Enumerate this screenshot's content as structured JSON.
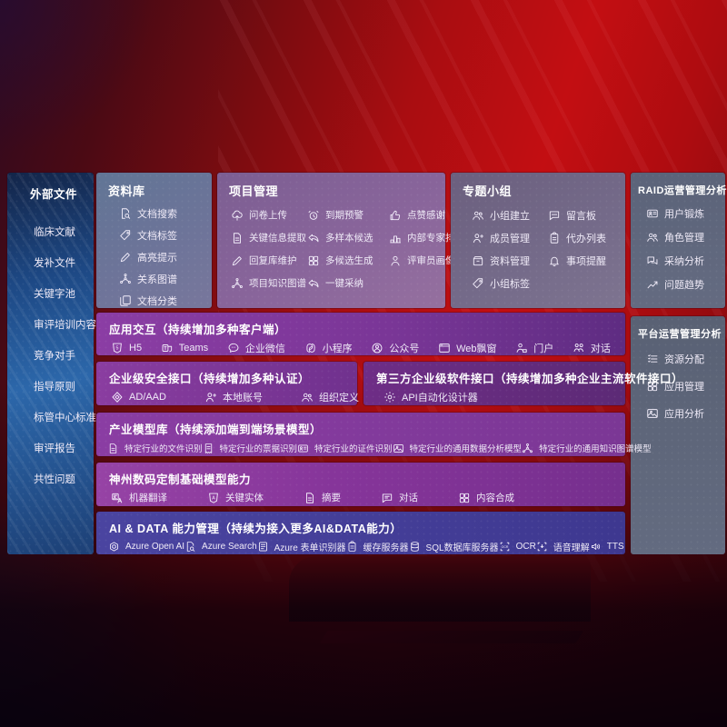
{
  "sidebar": {
    "title": "外部文件",
    "items": [
      {
        "label": "临床文献"
      },
      {
        "label": "发补文件"
      },
      {
        "label": "关键字池"
      },
      {
        "label": "审评培训内容"
      },
      {
        "label": "竞争对手"
      },
      {
        "label": "指导原则"
      },
      {
        "label": "标管中心标准"
      },
      {
        "label": "审评报告"
      },
      {
        "label": "共性问题"
      }
    ]
  },
  "repository": {
    "title": "资料库",
    "items": [
      {
        "label": "文档搜索",
        "icon": "doc-search-icon"
      },
      {
        "label": "文档标签",
        "icon": "doc-tag-icon"
      },
      {
        "label": "高亮提示",
        "icon": "highlight-pen-icon"
      },
      {
        "label": "关系图谱",
        "icon": "relation-graph-icon"
      },
      {
        "label": "文档分类",
        "icon": "doc-classify-icon"
      }
    ]
  },
  "project": {
    "title": "项目管理",
    "items": [
      {
        "label": "问卷上传",
        "icon": "cloud-upload-icon"
      },
      {
        "label": "到期预警",
        "icon": "alarm-icon"
      },
      {
        "label": "点赞感谢",
        "icon": "thumbs-up-icon"
      },
      {
        "label": "关键信息提取",
        "icon": "info-extract-icon"
      },
      {
        "label": "多样本候选",
        "icon": "multi-sample-icon"
      },
      {
        "label": "内部专家排名",
        "icon": "expert-ranking-icon"
      },
      {
        "label": "回复库维护",
        "icon": "reply-maintain-icon"
      },
      {
        "label": "多候选生成",
        "icon": "multi-generate-icon"
      },
      {
        "label": "评审员画像",
        "icon": "reviewer-profile-icon"
      },
      {
        "label": "项目知识图谱",
        "icon": "knowledge-graph-icon"
      },
      {
        "label": "一键采纳",
        "icon": "one-click-adopt-icon"
      }
    ]
  },
  "group": {
    "title": "专题小组",
    "items": [
      {
        "label": "小组建立",
        "icon": "group-create-icon"
      },
      {
        "label": "留言板",
        "icon": "message-board-icon"
      },
      {
        "label": "成员管理",
        "icon": "member-manage-icon"
      },
      {
        "label": "代办列表",
        "icon": "todo-list-icon"
      },
      {
        "label": "资料管理",
        "icon": "material-manage-icon"
      },
      {
        "label": "事项提醒",
        "icon": "reminder-bell-icon"
      },
      {
        "label": "小组标签",
        "icon": "group-tag-icon"
      }
    ]
  },
  "raid": {
    "title": "RAID运营管理分析",
    "items": [
      {
        "label": "用户锻炼",
        "icon": "user-card-icon"
      },
      {
        "label": "角色管理",
        "icon": "role-manage-icon"
      },
      {
        "label": "采纳分析",
        "icon": "adoption-analysis-icon"
      },
      {
        "label": "问题趋势",
        "icon": "issue-trend-icon"
      }
    ]
  },
  "platform": {
    "title": "平台运营管理分析",
    "items": [
      {
        "label": "资源分配",
        "icon": "resource-allocation-icon"
      },
      {
        "label": "应用管理",
        "icon": "app-manage-icon"
      },
      {
        "label": "应用分析",
        "icon": "app-analysis-icon"
      }
    ]
  },
  "interaction": {
    "title": "应用交互（持续增加多种客户端）",
    "items": [
      {
        "label": "H5",
        "icon": "h5-icon"
      },
      {
        "label": "Teams",
        "icon": "teams-icon"
      },
      {
        "label": "企业微信",
        "icon": "wecom-icon"
      },
      {
        "label": "小程序",
        "icon": "miniprogram-icon"
      },
      {
        "label": "公众号",
        "icon": "official-account-icon"
      },
      {
        "label": "Web飘窗",
        "icon": "web-popup-icon"
      },
      {
        "label": "门户",
        "icon": "portal-icon"
      },
      {
        "label": "对话",
        "icon": "dialog-icon"
      }
    ]
  },
  "security": {
    "title": "企业级安全接口（持续增加多种认证）",
    "items": [
      {
        "label": "AD/AAD",
        "icon": "ad-aad-icon"
      },
      {
        "label": "本地账号",
        "icon": "local-account-icon"
      },
      {
        "label": "组织定义",
        "icon": "org-define-icon"
      }
    ]
  },
  "thirdparty": {
    "title": "第三方企业级软件接口（持续增加多种企业主流软件接口）",
    "items": [
      {
        "label": "API自动化设计器",
        "icon": "api-designer-icon"
      }
    ]
  },
  "models": {
    "title": "产业模型库（持续添加端到端场景模型）",
    "items": [
      {
        "label": "特定行业的文件识别",
        "icon": "file-recognition-icon"
      },
      {
        "label": "特定行业的票据识别",
        "icon": "receipt-recognition-icon"
      },
      {
        "label": "特定行业的证件识别",
        "icon": "id-recognition-icon"
      },
      {
        "label": "特定行业的通用数据分析模型",
        "icon": "data-analysis-model-icon"
      },
      {
        "label": "特定行业的通用知识图谱模型",
        "icon": "knowledge-graph-model-icon"
      }
    ]
  },
  "basemodel": {
    "title": "神州数码定制基础模型能力",
    "items": [
      {
        "label": "机器翻译",
        "icon": "machine-translate-icon"
      },
      {
        "label": "关键实体",
        "icon": "key-entity-icon"
      },
      {
        "label": "摘要",
        "icon": "summary-icon"
      },
      {
        "label": "对话",
        "icon": "chat-dialog-icon"
      },
      {
        "label": "内容合成",
        "icon": "content-compose-icon"
      }
    ]
  },
  "aidata": {
    "title": "AI & DATA 能力管理（持续为接入更多AI&DATA能力）",
    "items": [
      {
        "label": "Azure Open AI",
        "icon": "azure-openai-icon"
      },
      {
        "label": "Azure Search",
        "icon": "azure-search-icon"
      },
      {
        "label": "Azure 表单识别器",
        "icon": "azure-form-icon"
      },
      {
        "label": "缓存服务器",
        "icon": "cache-server-icon"
      },
      {
        "label": "SQL数据库服务器",
        "icon": "sql-database-icon"
      },
      {
        "label": "OCR",
        "icon": "ocr-icon"
      },
      {
        "label": "语音理解",
        "icon": "speech-understand-icon"
      },
      {
        "label": "TTS",
        "icon": "tts-icon"
      }
    ]
  },
  "colors": {
    "background_red": "#b10d12",
    "sidebar_blue": "#2a5d9e",
    "panel_purple": "#7a3697",
    "panel_indigo": "#423c96"
  }
}
